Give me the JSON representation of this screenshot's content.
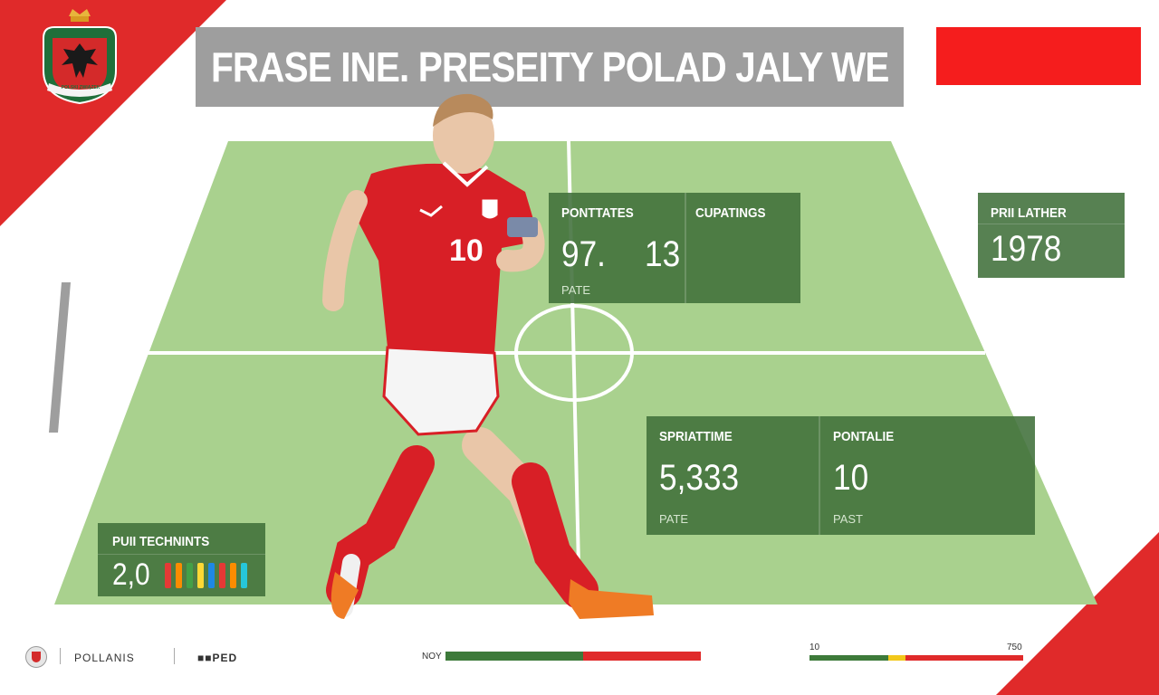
{
  "title": "FRASE INE. PRESEITY POLAD JALY WE",
  "crest": {
    "icon": "polish-eagle-crest-icon",
    "banner_text": "POLSKI ZWIĄZEK"
  },
  "colors": {
    "accent_red": "#e02a2a",
    "pitch_green": "#a9d18e",
    "card_green": "#40703a",
    "grey": "#9e9e9e"
  },
  "cards": {
    "stats": {
      "left_label": "PONTTATES",
      "right_label": "CUPATINGS",
      "left_value": "97.",
      "right_value": "13",
      "sub": "PATE"
    },
    "year": {
      "label": "PRII LATHER",
      "value": "1978"
    },
    "time": {
      "left_label": "SPRIATTIME",
      "right_label": "PONTALIE",
      "left_value": "5,333",
      "right_value": "10",
      "left_sub": "PATE",
      "right_sub": "PAST"
    },
    "tech": {
      "label": "PUII TECHNINTS",
      "value": "2,0",
      "bars": [
        "#e53935",
        "#fb8c00",
        "#43a047",
        "#fdd835",
        "#1e88e5",
        "#e53935",
        "#fb8c00",
        "#26c6da"
      ]
    }
  },
  "player": {
    "number": "10"
  },
  "footer": {
    "team": "POLLANIS",
    "tag": "■■PED",
    "progress1": {
      "label": "NOY",
      "green_fraction": 0.54
    },
    "progress2": {
      "min": "10",
      "max": "750",
      "green_fraction": 0.37,
      "yellow_fraction": 0.08
    }
  }
}
